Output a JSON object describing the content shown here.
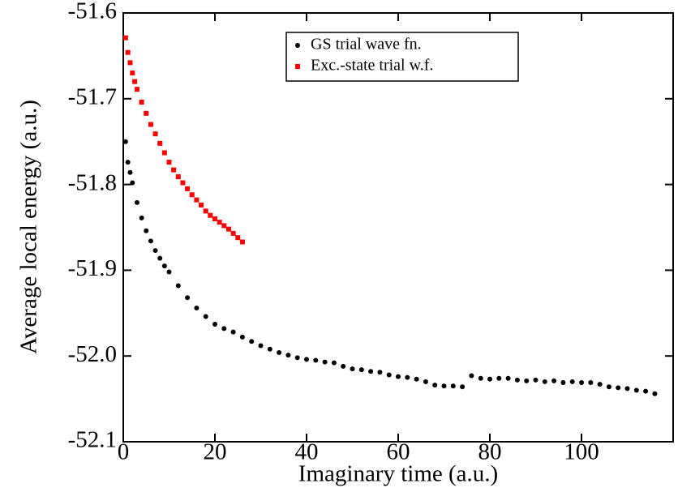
{
  "chart_data": {
    "type": "scatter",
    "x_label": "Imaginary time (a.u.)",
    "y_label": "Average local energy (a.u.)",
    "xlim": [
      0,
      120
    ],
    "ylim": [
      -52.1,
      -51.6
    ],
    "xticks": [
      0,
      20,
      40,
      60,
      80,
      100
    ],
    "yticks": [
      -52.1,
      {
        "value": -52,
        "label": "-52.0"
      },
      -51.9,
      -51.8,
      -51.7,
      -51.6
    ],
    "legend": "upper center",
    "series": [
      {
        "name": "GS trial wave fn.",
        "color": "#000000",
        "marker": "circle",
        "x": [
          0.5,
          1,
          1.5,
          2,
          3,
          4,
          5,
          6,
          7,
          8,
          9,
          10,
          12,
          14,
          16,
          18,
          20,
          22,
          24,
          26,
          28,
          30,
          32,
          34,
          36,
          38,
          40,
          42,
          44,
          46,
          48,
          50,
          52,
          54,
          56,
          58,
          60,
          62,
          64,
          66,
          68,
          70,
          72,
          74,
          76,
          78,
          80,
          82,
          84,
          86,
          88,
          90,
          92,
          94,
          96,
          98,
          100,
          102,
          104,
          106,
          108,
          110,
          112,
          114,
          116
        ],
        "values": [
          -51.75,
          -51.774,
          -51.786,
          -51.798,
          -51.821,
          -51.839,
          -51.854,
          -51.866,
          -51.877,
          -51.886,
          -51.895,
          -51.902,
          -51.918,
          -51.932,
          -51.944,
          -51.954,
          -51.963,
          -51.968,
          -51.972,
          -51.978,
          -51.983,
          -51.988,
          -51.992,
          -51.996,
          -51.999,
          -52.002,
          -52.004,
          -52.005,
          -52.007,
          -52.008,
          -52.012,
          -52.015,
          -52.016,
          -52.018,
          -52.019,
          -52.022,
          -52.024,
          -52.025,
          -52.027,
          -52.03,
          -52.034,
          -52.035,
          -52.035,
          -52.036,
          -52.023,
          -52.026,
          -52.027,
          -52.026,
          -52.026,
          -52.028,
          -52.029,
          -52.028,
          -52.03,
          -52.029,
          -52.031,
          -52.03,
          -52.031,
          -52.031,
          -52.033,
          -52.036,
          -52.037,
          -52.038,
          -52.04,
          -52.041,
          -52.044
        ]
      },
      {
        "name": "Exc.-state trial w.f.",
        "color": "#ff0000",
        "marker": "square",
        "x": [
          0.5,
          1,
          1.5,
          2,
          2.5,
          3,
          4,
          5,
          6,
          7,
          8,
          9,
          10,
          11,
          12,
          13,
          14,
          15,
          16,
          17,
          18,
          19,
          20,
          21,
          22,
          23,
          24,
          25,
          26
        ],
        "values": [
          -51.629,
          -51.646,
          -51.658,
          -51.67,
          -51.68,
          -51.689,
          -51.704,
          -51.717,
          -51.73,
          -51.741,
          -51.752,
          -51.763,
          -51.774,
          -51.783,
          -51.791,
          -51.798,
          -51.805,
          -51.812,
          -51.818,
          -51.824,
          -51.831,
          -51.836,
          -51.84,
          -51.844,
          -51.848,
          -51.852,
          -51.857,
          -51.862,
          -51.867
        ]
      }
    ]
  }
}
